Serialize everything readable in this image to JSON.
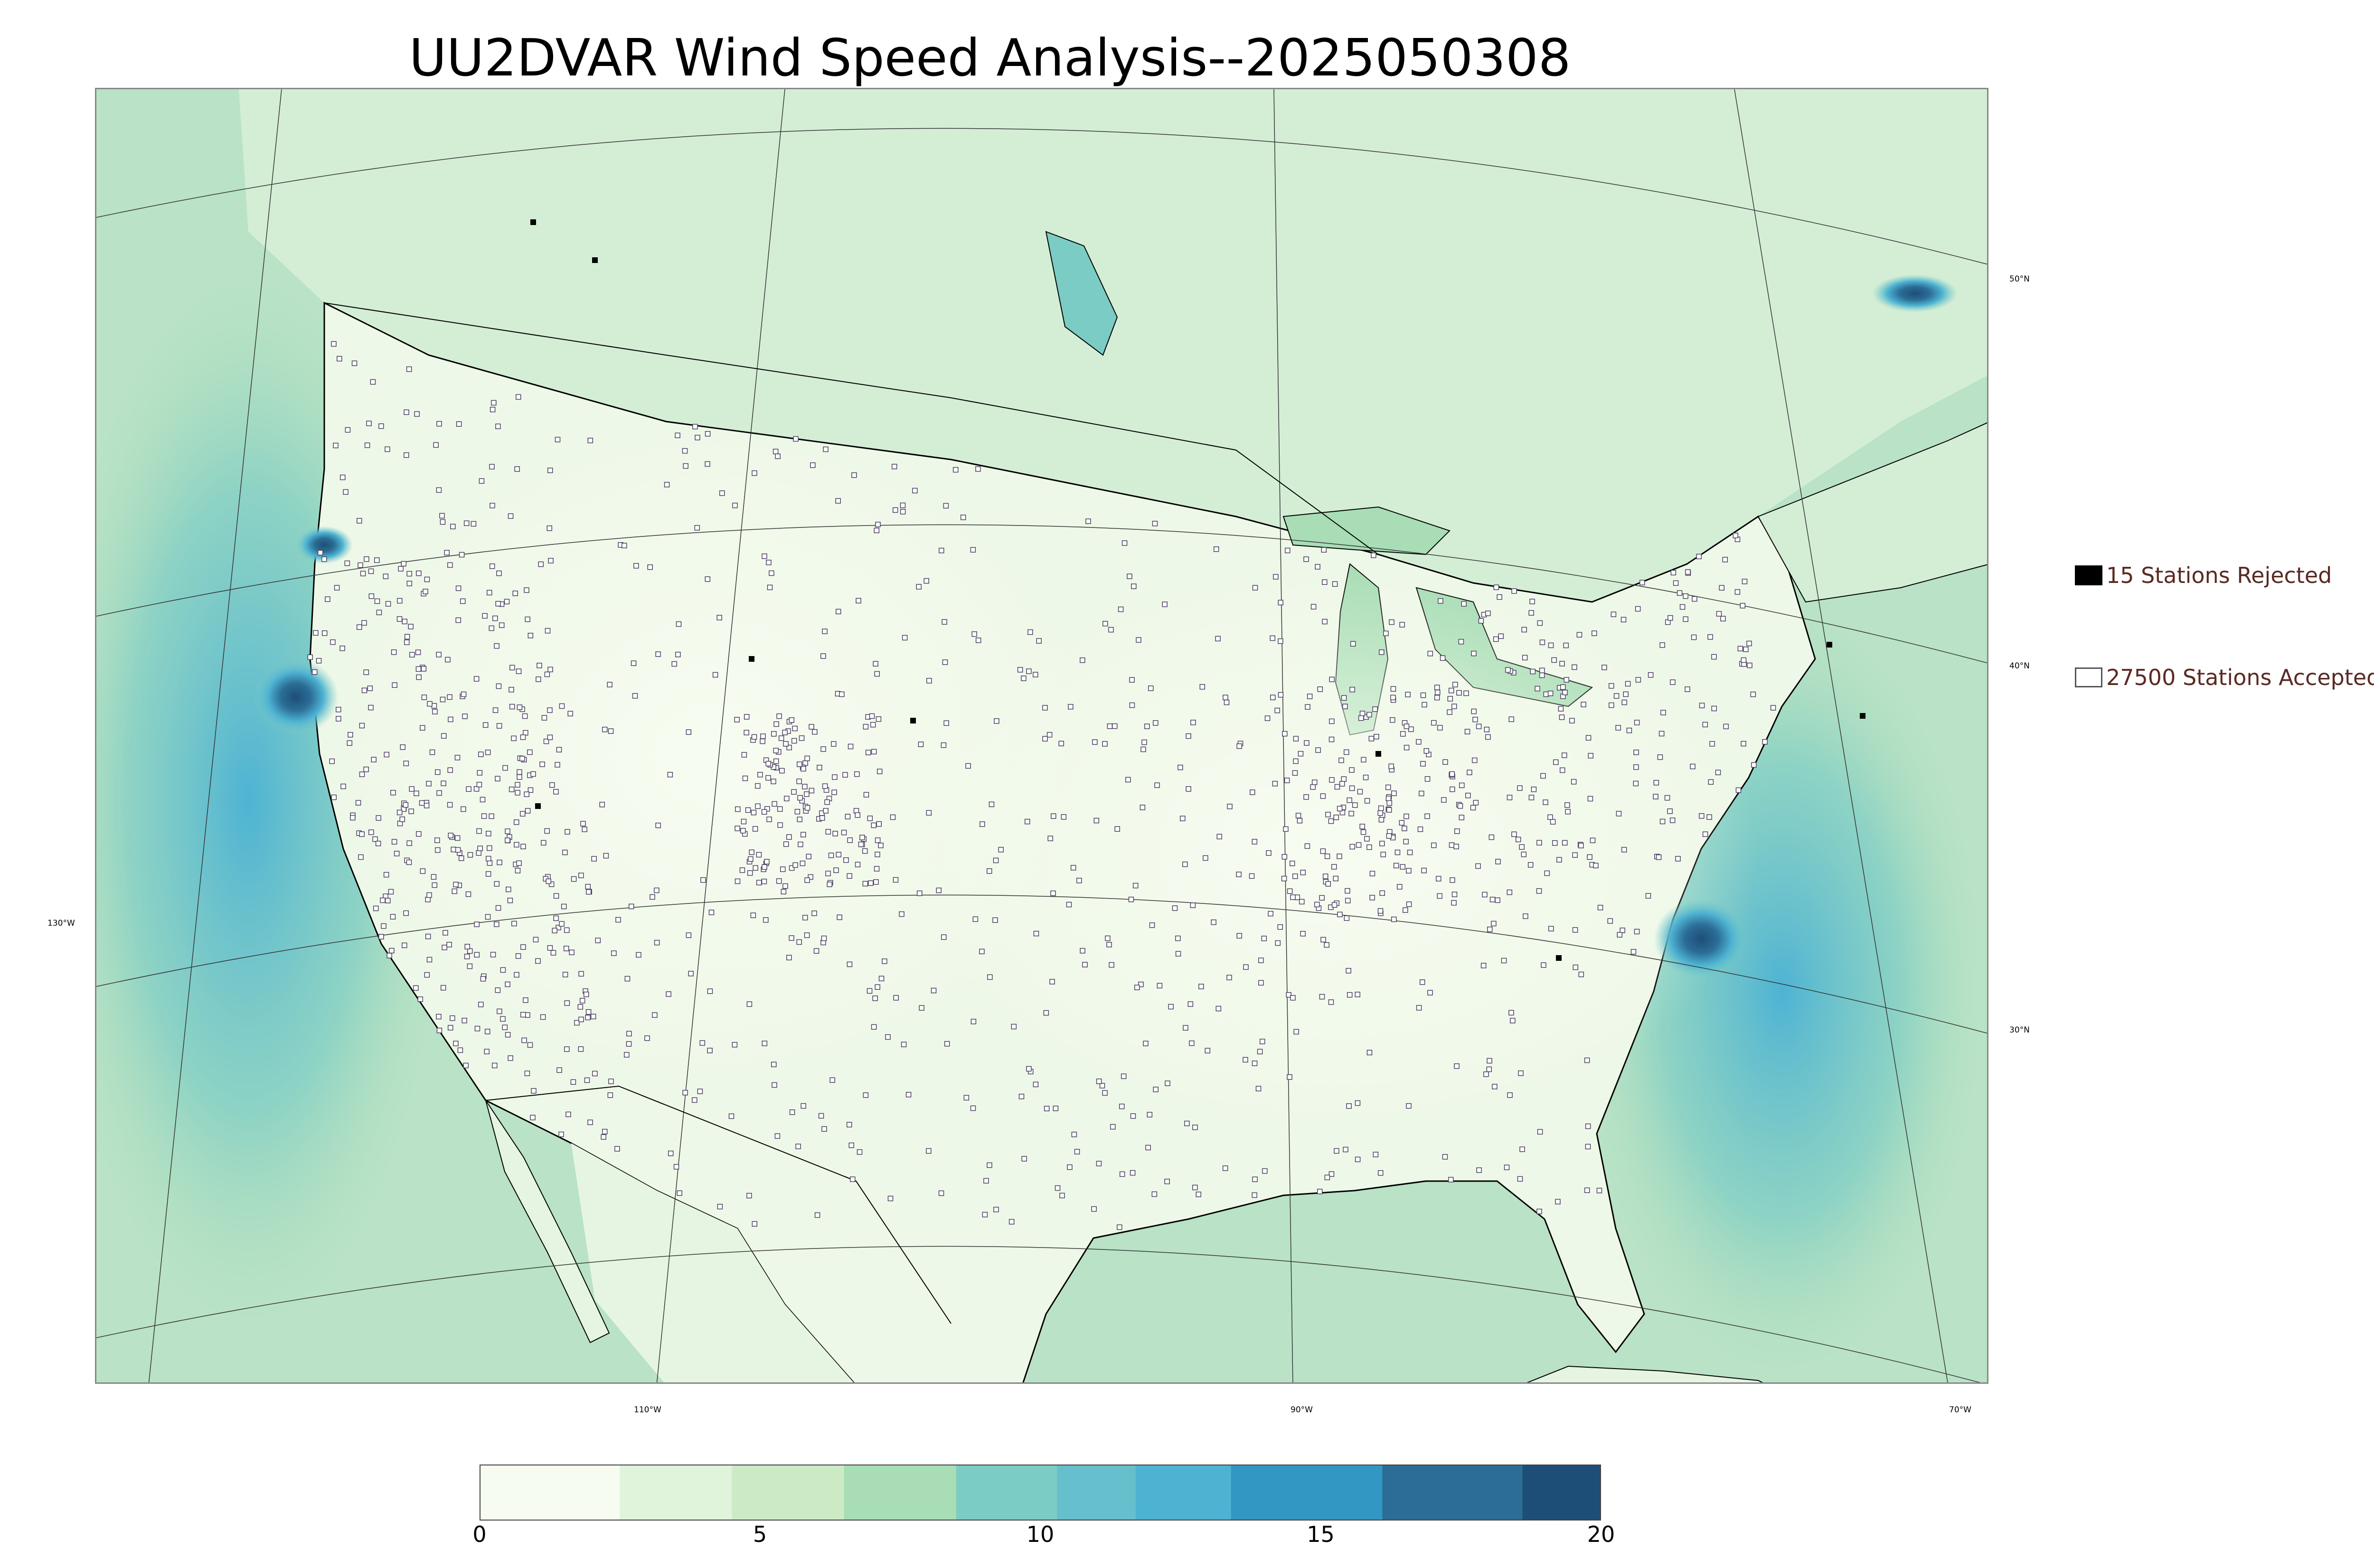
{
  "title": "UU2DVAR Wind Speed Analysis--2025050308",
  "graticule": {
    "lat_labels": [
      "50°N",
      "40°N",
      "30°N"
    ],
    "lon_labels": [
      "130°W",
      "110°W",
      "90°W",
      "70°W"
    ]
  },
  "legend": {
    "rejected": {
      "label": "15 Stations Rejected",
      "color": "#000000"
    },
    "accepted": {
      "label": "27500 Stations Accepted",
      "color": "#ffffff"
    }
  },
  "colorbar": {
    "min": 0,
    "max": 20,
    "ticks": [
      "0",
      "5",
      "10",
      "15",
      "20"
    ],
    "colors": [
      "#f7fcf0",
      "#e0f3db",
      "#ccebc5",
      "#a8ddb5",
      "#7bccc4",
      "#66bfcc",
      "#4eb3d3",
      "#3397c4",
      "#2b6d95",
      "#1d4e78"
    ],
    "bounds": [
      0,
      2.5,
      4.5,
      6.5,
      8.5,
      10.3,
      11.7,
      13.4,
      16.1,
      18.6,
      20
    ]
  },
  "colors": {
    "land_base": "#eef8e8",
    "ocean_base": "#b9e2c6",
    "coastline": "#000000",
    "station_edge": "#4a4060"
  }
}
